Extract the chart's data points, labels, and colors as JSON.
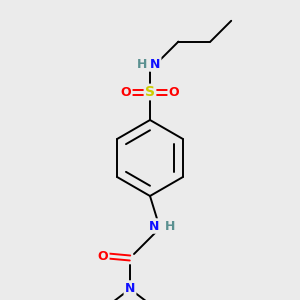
{
  "bg_color": "#ebebeb",
  "atom_colors": {
    "C": "#000000",
    "H": "#5a9090",
    "N": "#1010ff",
    "O": "#ff0000",
    "S": "#cccc00"
  },
  "bond_color": "#000000",
  "bond_width": 1.4,
  "fig_size": [
    3.0,
    3.0
  ],
  "dpi": 100
}
